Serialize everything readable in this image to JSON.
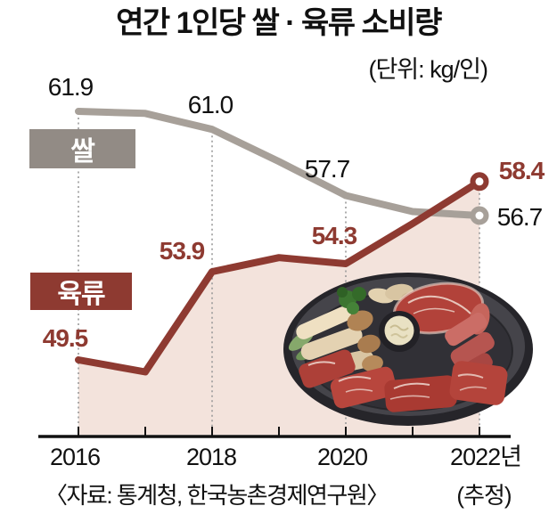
{
  "title": "연간 1인당 쌀 · 육류 소비량",
  "unit_note": "(단위: kg/인)",
  "series_tags": {
    "rice": "쌀",
    "meat": "육류"
  },
  "value_labels": {
    "rice": {
      "y2016": "61.9",
      "y2018": "61.0",
      "y2020": "57.7",
      "y2022": "56.7"
    },
    "meat": {
      "y2016": "49.5",
      "y2018": "53.9",
      "y2020": "54.3",
      "y2022": "58.4"
    }
  },
  "x_axis": {
    "labels": [
      "2016",
      "2018",
      "2020",
      "2022년"
    ]
  },
  "estimate_note": "(추정)",
  "source": "〈자료: 통계청, 한국농촌경제연구원〉",
  "colors": {
    "meat": "#8e3a31",
    "rice_line": "#a7a099",
    "rice_box": "#928b85",
    "area_fill": "#f3e3dc",
    "dotted": "#9a9a9a",
    "text": "#111111"
  },
  "chart_data": {
    "type": "line",
    "title": "연간 1인당 쌀 · 육류 소비량",
    "unit": "kg/인",
    "x": [
      2016,
      2017,
      2018,
      2019,
      2020,
      2021,
      2022
    ],
    "x_tick_labels_shown": [
      "2016",
      "2018",
      "2020",
      "2022년"
    ],
    "series": [
      {
        "name": "쌀",
        "color": "#a7a099",
        "values": [
          61.9,
          61.8,
          61.0,
          59.4,
          57.7,
          56.9,
          56.7
        ],
        "labeled_points": {
          "2016": 61.9,
          "2018": 61.0,
          "2020": 57.7,
          "2022": 56.7
        }
      },
      {
        "name": "육류",
        "color": "#8e3a31",
        "area_fill": true,
        "values": [
          49.5,
          48.9,
          53.9,
          54.6,
          54.3,
          56.3,
          58.4
        ],
        "labeled_points": {
          "2016": 49.5,
          "2018": 53.9,
          "2020": 54.3,
          "2022": 58.4
        }
      }
    ],
    "ylim": [
      47,
      63
    ],
    "grid": false,
    "legend_position": "inline-tags",
    "notes": "2022년 values are estimates (추정); unlabeled odd-year values estimated from line positions"
  }
}
